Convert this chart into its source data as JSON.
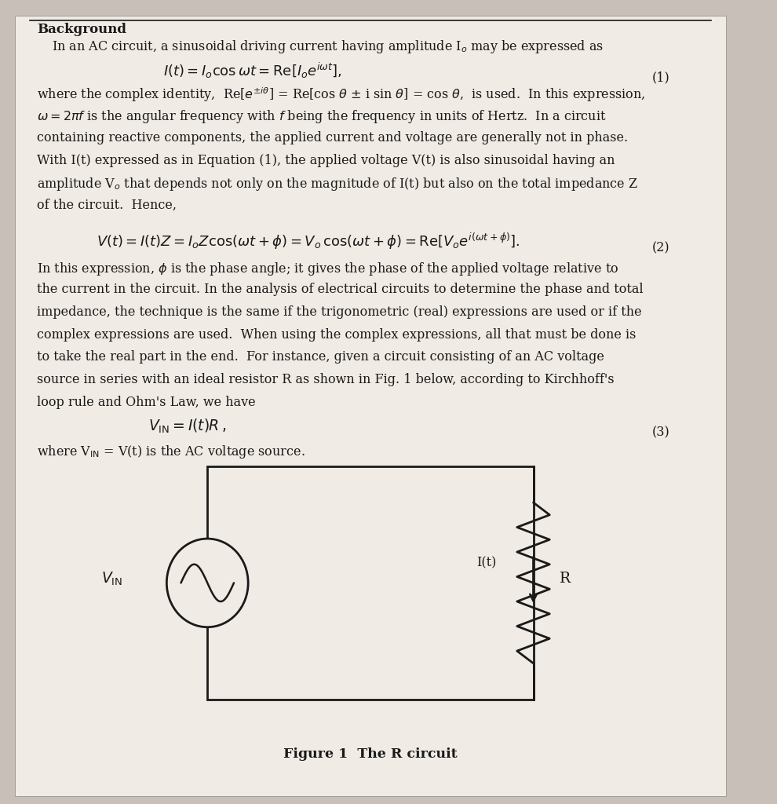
{
  "bg_color": "#c8c0b8",
  "page_bg": "#f0ebe4",
  "title": "Background",
  "fig_caption": "Figure 1  The R circuit",
  "line1": "In an AC circuit, a sinusoidal driving current having amplitude I",
  "text_color": "#1a1a1a",
  "font_size_body": 11.5,
  "font_size_title": 12,
  "circuit_box_color": "#1a1a1a"
}
